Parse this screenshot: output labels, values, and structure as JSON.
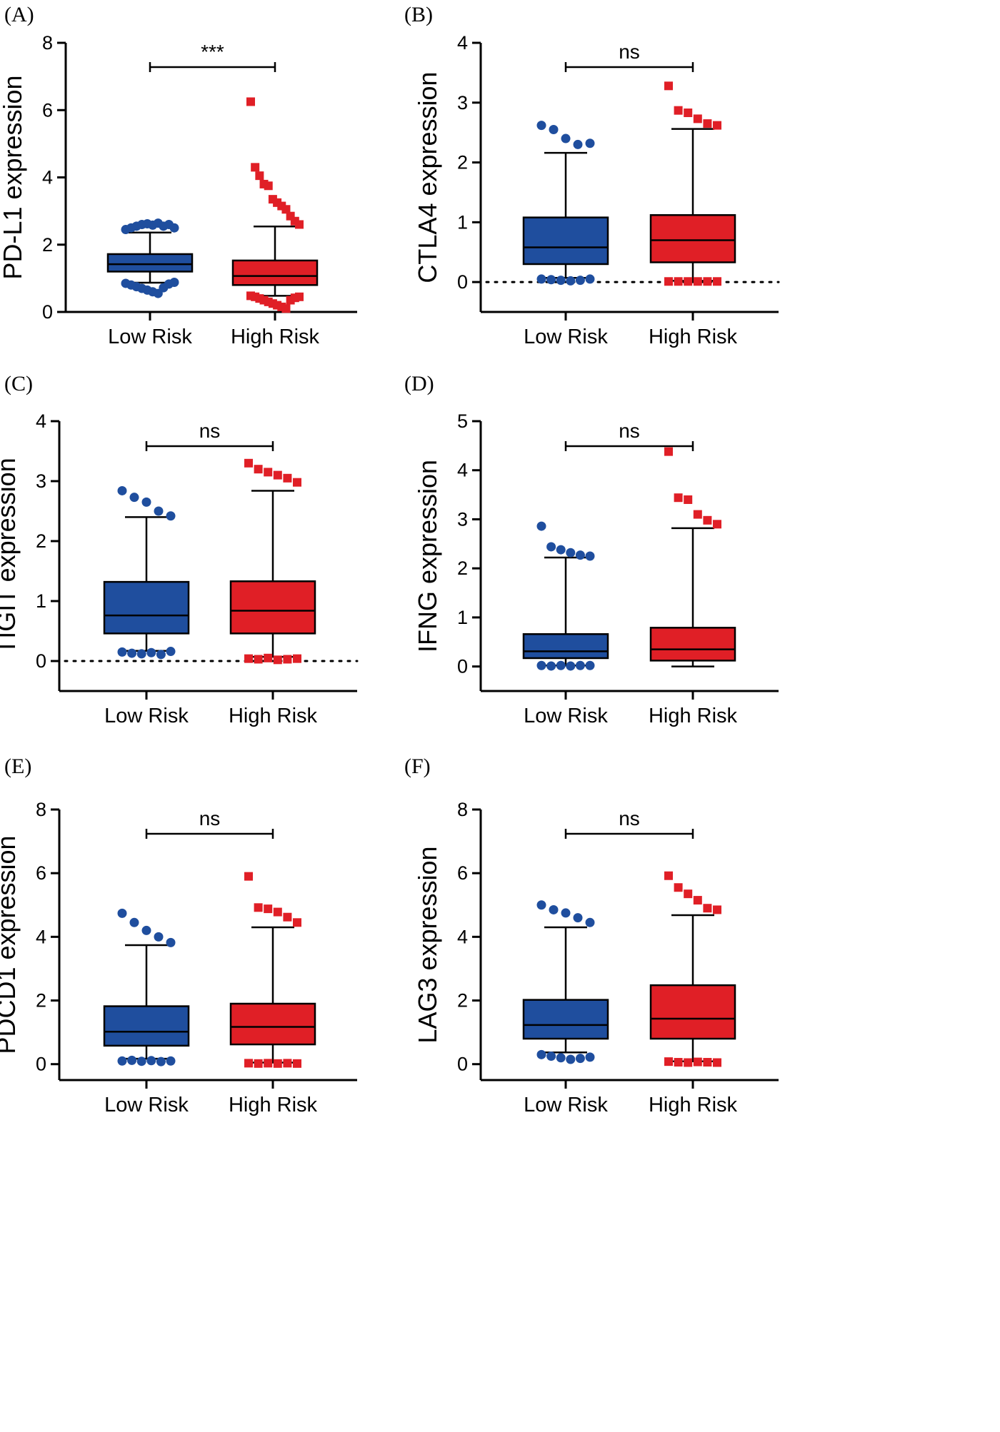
{
  "colors": {
    "low_risk": "#1f4e9e",
    "high_risk": "#e01f26",
    "axis": "#000000"
  },
  "chart_data": [
    {
      "panel": "(A)",
      "type": "box",
      "ylabel": "PD-L1 expression",
      "ylim": [
        0,
        8
      ],
      "yticks": [
        0,
        2,
        4,
        6,
        8
      ],
      "zero_line": false,
      "categories": [
        "Low Risk",
        "High Risk"
      ],
      "significance": "***",
      "series": [
        {
          "name": "Low Risk",
          "marker": "circle",
          "q1": 1.2,
          "median": 1.42,
          "q3": 1.72,
          "whisker_low": 0.87,
          "whisker_high": 2.36,
          "outliers_high": [
            2.45,
            2.5,
            2.55,
            2.6,
            2.62,
            2.58,
            2.64,
            2.55,
            2.6,
            2.5
          ],
          "outliers_low": [
            0.85,
            0.8,
            0.75,
            0.7,
            0.65,
            0.6,
            0.55,
            0.72,
            0.83,
            0.88
          ]
        },
        {
          "name": "High Risk",
          "marker": "square",
          "q1": 0.8,
          "median": 1.07,
          "q3": 1.53,
          "whisker_low": 0.48,
          "whisker_high": 2.54,
          "outliers_high": [
            6.25,
            4.3,
            4.05,
            3.8,
            3.75,
            3.35,
            3.25,
            3.15,
            3.05,
            2.85,
            2.7,
            2.6
          ],
          "outliers_low": [
            0.48,
            0.45,
            0.4,
            0.35,
            0.3,
            0.25,
            0.2,
            0.15,
            0.1,
            0.35,
            0.42,
            0.45
          ]
        }
      ]
    },
    {
      "panel": "(B)",
      "type": "box",
      "ylabel": "CTLA4 expression",
      "ylim": [
        -0.5,
        4
      ],
      "yticks": [
        0,
        1,
        2,
        3,
        4
      ],
      "zero_line": true,
      "categories": [
        "Low Risk",
        "High Risk"
      ],
      "significance": "ns",
      "series": [
        {
          "name": "Low Risk",
          "marker": "circle",
          "q1": 0.3,
          "median": 0.58,
          "q3": 1.08,
          "whisker_low": 0.07,
          "whisker_high": 2.16,
          "outliers_high": [
            2.62,
            2.55,
            2.4,
            2.3,
            2.32
          ],
          "outliers_low": [
            0.05,
            0.04,
            0.03,
            0.02,
            0.03,
            0.05
          ]
        },
        {
          "name": "High Risk",
          "marker": "square",
          "q1": 0.33,
          "median": 0.7,
          "q3": 1.12,
          "whisker_low": 0.02,
          "whisker_high": 2.56,
          "outliers_high": [
            3.28,
            2.87,
            2.83,
            2.73,
            2.65,
            2.62
          ],
          "outliers_low": [
            0.01,
            0.01,
            0.01,
            0.01,
            0.01,
            0.01
          ]
        }
      ]
    },
    {
      "panel": "(C)",
      "type": "box",
      "ylabel": "TIGIT expression",
      "ylim": [
        -0.5,
        4
      ],
      "yticks": [
        0,
        1,
        2,
        3,
        4
      ],
      "zero_line": true,
      "categories": [
        "Low Risk",
        "High Risk"
      ],
      "significance": "ns",
      "series": [
        {
          "name": "Low Risk",
          "marker": "circle",
          "q1": 0.46,
          "median": 0.76,
          "q3": 1.32,
          "whisker_low": 0.17,
          "whisker_high": 2.4,
          "outliers_high": [
            2.84,
            2.73,
            2.65,
            2.5,
            2.42
          ],
          "outliers_low": [
            0.15,
            0.13,
            0.12,
            0.14,
            0.11,
            0.16
          ]
        },
        {
          "name": "High Risk",
          "marker": "square",
          "q1": 0.46,
          "median": 0.84,
          "q3": 1.33,
          "whisker_low": 0.07,
          "whisker_high": 2.84,
          "outliers_high": [
            3.3,
            3.2,
            3.15,
            3.1,
            3.05,
            2.98
          ],
          "outliers_low": [
            0.04,
            0.03,
            0.05,
            0.02,
            0.03,
            0.04
          ]
        }
      ]
    },
    {
      "panel": "(D)",
      "type": "box",
      "ylabel": "IFNG expression",
      "ylim": [
        -0.5,
        5
      ],
      "yticks": [
        0,
        1,
        2,
        3,
        4,
        5
      ],
      "zero_line": false,
      "categories": [
        "Low Risk",
        "High Risk"
      ],
      "significance": "ns",
      "series": [
        {
          "name": "Low Risk",
          "marker": "circle",
          "q1": 0.17,
          "median": 0.31,
          "q3": 0.66,
          "whisker_low": 0.02,
          "whisker_high": 2.22,
          "outliers_high": [
            2.86,
            2.44,
            2.38,
            2.32,
            2.27,
            2.25
          ],
          "outliers_low": [
            0.02,
            0.01,
            0.02,
            0.01,
            0.02,
            0.02
          ]
        },
        {
          "name": "High Risk",
          "marker": "square",
          "q1": 0.12,
          "median": 0.35,
          "q3": 0.79,
          "whisker_low": 0.0,
          "whisker_high": 2.82,
          "outliers_high": [
            4.38,
            3.44,
            3.4,
            3.1,
            2.98,
            2.9
          ],
          "outliers_low": []
        }
      ]
    },
    {
      "panel": "(E)",
      "type": "box",
      "ylabel": "PDCD1 expression",
      "ylim": [
        -0.5,
        8
      ],
      "yticks": [
        0,
        2,
        4,
        6,
        8
      ],
      "zero_line": false,
      "categories": [
        "Low Risk",
        "High Risk"
      ],
      "significance": "ns",
      "series": [
        {
          "name": "Low Risk",
          "marker": "circle",
          "q1": 0.58,
          "median": 1.02,
          "q3": 1.82,
          "whisker_low": 0.17,
          "whisker_high": 3.74,
          "outliers_high": [
            4.74,
            4.45,
            4.2,
            4.0,
            3.82
          ],
          "outliers_low": [
            0.1,
            0.12,
            0.09,
            0.11,
            0.08,
            0.1
          ]
        },
        {
          "name": "High Risk",
          "marker": "square",
          "q1": 0.62,
          "median": 1.17,
          "q3": 1.9,
          "whisker_low": 0.05,
          "whisker_high": 4.3,
          "outliers_high": [
            5.9,
            4.92,
            4.88,
            4.78,
            4.62,
            4.45
          ],
          "outliers_low": [
            0.03,
            0.02,
            0.03,
            0.02,
            0.03,
            0.02
          ]
        }
      ]
    },
    {
      "panel": "(F)",
      "type": "box",
      "ylabel": "LAG3 expression",
      "ylim": [
        -0.5,
        8
      ],
      "yticks": [
        0,
        2,
        4,
        6,
        8
      ],
      "zero_line": false,
      "categories": [
        "Low Risk",
        "High Risk"
      ],
      "significance": "ns",
      "series": [
        {
          "name": "Low Risk",
          "marker": "circle",
          "q1": 0.8,
          "median": 1.23,
          "q3": 2.02,
          "whisker_low": 0.37,
          "whisker_high": 4.3,
          "outliers_high": [
            5.0,
            4.85,
            4.75,
            4.6,
            4.45
          ],
          "outliers_low": [
            0.3,
            0.25,
            0.2,
            0.15,
            0.18,
            0.22
          ]
        },
        {
          "name": "High Risk",
          "marker": "square",
          "q1": 0.8,
          "median": 1.43,
          "q3": 2.48,
          "whisker_low": 0.09,
          "whisker_high": 4.68,
          "outliers_high": [
            5.92,
            5.55,
            5.35,
            5.15,
            4.9,
            4.85
          ],
          "outliers_low": [
            0.08,
            0.06,
            0.05,
            0.07,
            0.06,
            0.05
          ]
        }
      ]
    }
  ]
}
